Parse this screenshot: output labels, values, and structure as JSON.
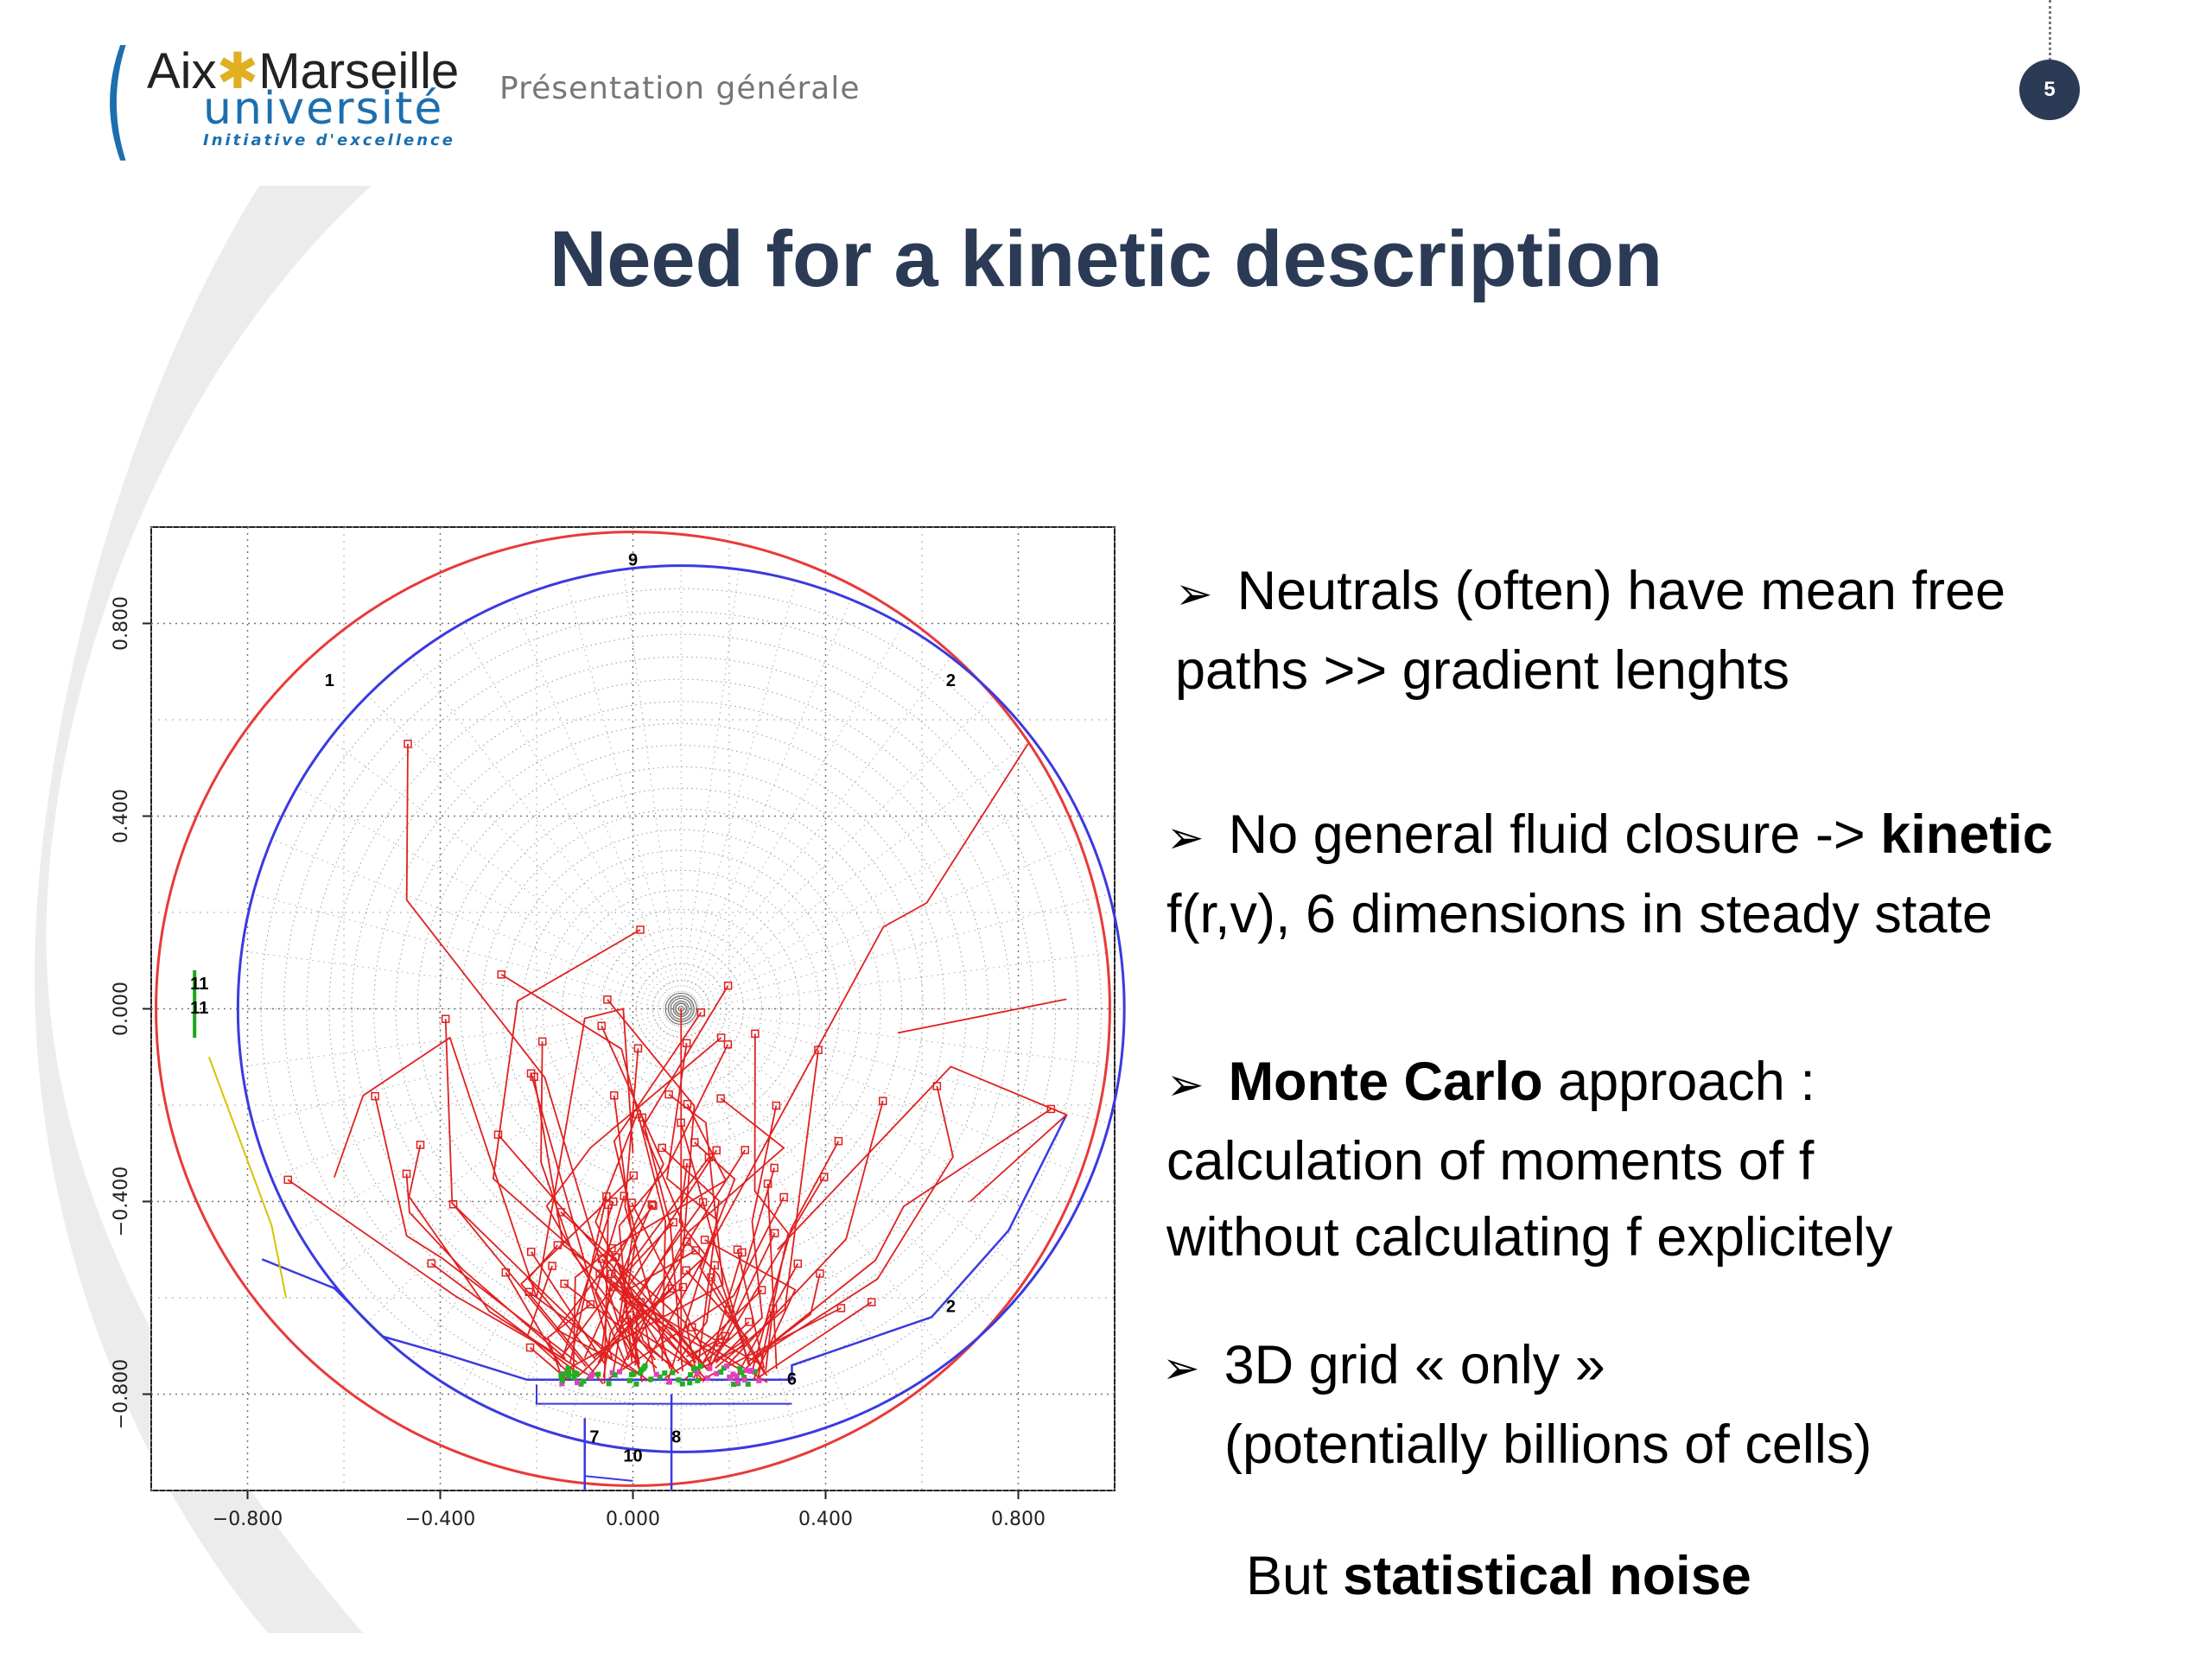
{
  "header": {
    "logo": {
      "line1_a": "Aix",
      "line1_star": "✱",
      "line1_b": "Marseille",
      "line2": "université",
      "line3": "Initiative d'excellence"
    },
    "section_label": "Présentation générale",
    "page_number": "5"
  },
  "slide": {
    "title": "Need for a kinetic description"
  },
  "bullets": {
    "b1_line1": "Neutrals (often) have  mean free",
    "b1_line2": "paths  >> gradient lenghts",
    "b2_line1_a": "No general fluid closure ->",
    "b2_line1_bold": "kinetic",
    "b2_line2": "f(r,v), 6 dimensions in steady state",
    "b3_line1_bold": "Monte Carlo",
    "b3_line1_b": "approach :",
    "b3_line2": "calculation of moments of f",
    "b3_line3": "without calculating f explicitely",
    "b4_line1": "3D grid « only »",
    "b4_line2": "(potentially billions of cells)",
    "b5_a": "But",
    "b5_bold": "statistical noise",
    "arrow_glyph": "➢"
  },
  "chart_data": {
    "type": "scatter",
    "xlim": [
      -1.0,
      1.0
    ],
    "ylim": [
      -1.0,
      1.0
    ],
    "x_ticks": [
      "−0.800",
      "−0.400",
      "0.000",
      "0.400",
      "0.800"
    ],
    "y_ticks": [
      "0.800",
      "0.400",
      "0.000",
      "−0.400",
      "−0.800"
    ],
    "x_tick_values": [
      -0.8,
      -0.4,
      0.0,
      0.4,
      0.8
    ],
    "y_tick_values": [
      0.8,
      0.4,
      0.0,
      -0.4,
      -0.8
    ],
    "grid": true,
    "outer_circle_radius": 0.99,
    "inner_boundary_radius": 0.92,
    "boundary_labels": [
      {
        "text": "9",
        "x": 0.0,
        "y": 0.92
      },
      {
        "text": "1",
        "x": -0.63,
        "y": 0.67
      },
      {
        "text": "2",
        "x": 0.66,
        "y": 0.67
      },
      {
        "text": "11",
        "x": -0.9,
        "y": 0.04
      },
      {
        "text": "11",
        "x": -0.9,
        "y": -0.01
      },
      {
        "text": "2",
        "x": 0.66,
        "y": -0.63
      },
      {
        "text": "6",
        "x": 0.33,
        "y": -0.78
      },
      {
        "text": "7",
        "x": -0.08,
        "y": -0.9
      },
      {
        "text": "8",
        "x": 0.09,
        "y": -0.9
      },
      {
        "text": "10",
        "x": 0.0,
        "y": -0.94
      }
    ],
    "center": [
      0.1,
      0.0
    ],
    "colors": {
      "outer": "#e83a3a",
      "boundary": "#3a3ae0",
      "tracks": "#e02020",
      "frame": "#222222"
    }
  }
}
